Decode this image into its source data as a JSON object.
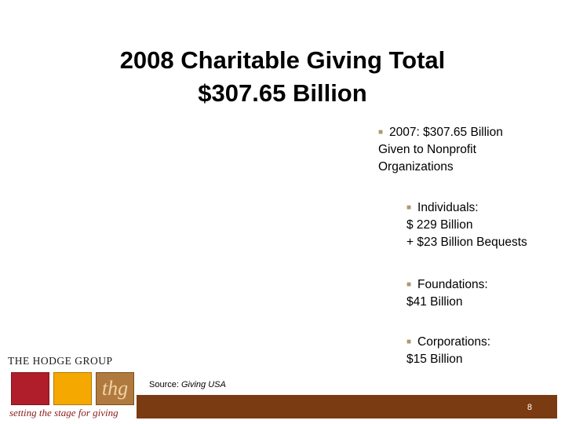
{
  "title": {
    "line1": "2008 Charitable Giving Total",
    "line2": "$307.65 Billion"
  },
  "bullets": [
    {
      "icon": "square-bullet-icon",
      "lines": [
        "2007: $307.65 Billion",
        "Given to Nonprofit",
        "Organizations"
      ]
    },
    {
      "icon": "square-bullet-icon",
      "lines": [
        "Individuals:",
        "$ 229 Billion",
        "+ $23 Billion Bequests"
      ]
    },
    {
      "icon": "square-bullet-icon",
      "lines": [
        "Foundations:",
        "$41 Billion"
      ]
    },
    {
      "icon": "square-bullet-icon",
      "lines": [
        "Corporations:",
        "$15 Billion"
      ]
    }
  ],
  "logo": {
    "name": "THE HODGE GROUP",
    "mark": "thg",
    "tagline": "setting the stage for giving",
    "colors": {
      "red": "#b01e2c",
      "gold": "#f5a800",
      "brown": "#b07a3e"
    }
  },
  "source": {
    "label": "Source:",
    "name": "Giving USA"
  },
  "footer": {
    "page_number": "8",
    "bar_color": "#7a3a12"
  }
}
